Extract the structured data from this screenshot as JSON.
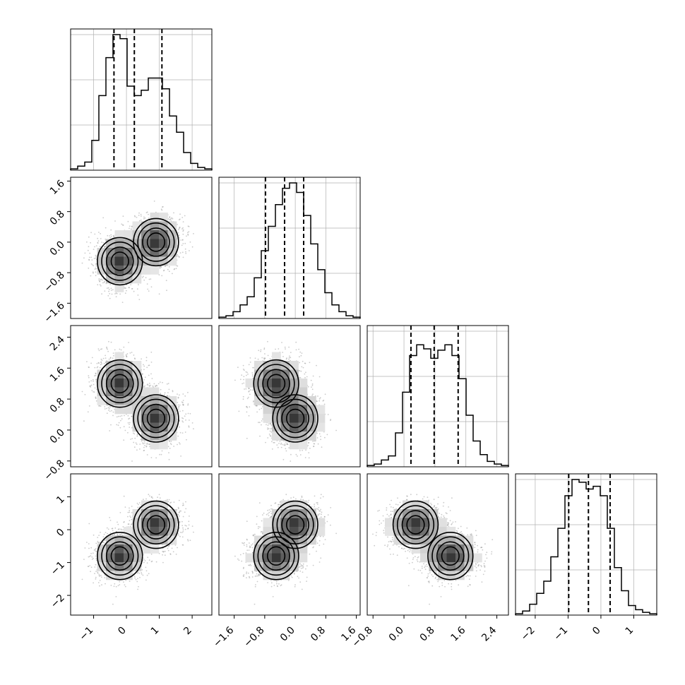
{
  "chart_data": {
    "type": "corner",
    "dimensions": 4,
    "grid": true,
    "colors": {
      "line": "#000000",
      "grid": "#b0b0b0",
      "points": "#8c8c8c",
      "density_dark": "#000000",
      "density_light": "#ffffff"
    },
    "ranges": [
      [
        -1.7,
        2.6
      ],
      [
        -2.0,
        1.7
      ],
      [
        -0.95,
        2.7
      ],
      [
        -2.6,
        1.7
      ]
    ],
    "ticks": [
      {
        "values": [
          -1,
          0,
          1,
          2
        ],
        "labels": [
          "−1",
          "0",
          "1",
          "2"
        ]
      },
      {
        "values": [
          -1.6,
          -0.8,
          0.0,
          0.8,
          1.6
        ],
        "labels": [
          "−1.6",
          "−0.8",
          "0.0",
          "0.8",
          "1.6"
        ]
      },
      {
        "values": [
          -0.8,
          0.0,
          0.8,
          1.6,
          2.4
        ],
        "labels": [
          "−0.8",
          "0.0",
          "0.8",
          "1.6",
          "2.4"
        ]
      },
      {
        "values": [
          -2,
          -1,
          0,
          1
        ],
        "labels": [
          "−2",
          "−1",
          "0",
          "1"
        ]
      }
    ],
    "quantiles": [
      [
        -0.38,
        0.24,
        1.08
      ],
      [
        -0.78,
        -0.28,
        0.22
      ],
      [
        0.18,
        0.78,
        1.4
      ],
      [
        -0.98,
        -0.38,
        0.28
      ]
    ],
    "histograms": [
      [
        0.01,
        0.03,
        0.06,
        0.22,
        0.55,
        0.83,
        1.0,
        0.97,
        0.62,
        0.55,
        0.59,
        0.68,
        0.68,
        0.6,
        0.4,
        0.28,
        0.13,
        0.05,
        0.02,
        0.01
      ],
      [
        0.01,
        0.02,
        0.05,
        0.1,
        0.16,
        0.3,
        0.5,
        0.68,
        0.84,
        0.96,
        1.0,
        0.93,
        0.76,
        0.55,
        0.36,
        0.19,
        0.1,
        0.05,
        0.02,
        0.01
      ],
      [
        0.01,
        0.02,
        0.05,
        0.08,
        0.25,
        0.55,
        0.82,
        0.9,
        0.87,
        0.8,
        0.86,
        0.9,
        0.82,
        0.65,
        0.38,
        0.19,
        0.09,
        0.04,
        0.02,
        0.01
      ],
      [
        0.01,
        0.03,
        0.08,
        0.16,
        0.25,
        0.43,
        0.64,
        0.88,
        1.0,
        0.98,
        0.93,
        0.95,
        0.88,
        0.64,
        0.35,
        0.18,
        0.07,
        0.04,
        0.02,
        0.01
      ]
    ],
    "modes": [
      [
        -0.2,
        -0.5,
        1.2,
        -0.8
      ],
      [
        0.9,
        0.0,
        0.3,
        0.15
      ]
    ]
  }
}
